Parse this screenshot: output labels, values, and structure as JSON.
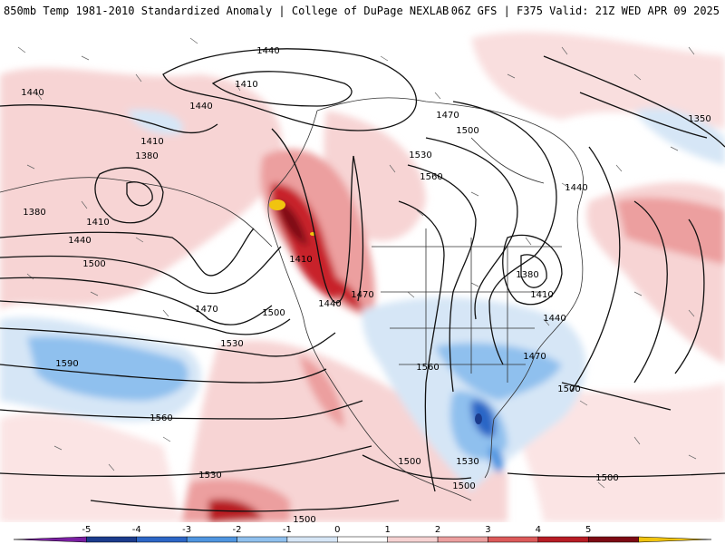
{
  "header": {
    "left_title": "850mb Temp 1981-2010 Standardized Anomaly | College of DuPage NEXLAB",
    "right_title": "06Z GFS | F375 Valid: 21Z WED APR 09 2025"
  },
  "contour_labels": [
    "1440",
    "1410",
    "1440",
    "1440",
    "1410",
    "1380",
    "1380",
    "1410",
    "1440",
    "1500",
    "1470",
    "1530",
    "1590",
    "1560",
    "1530",
    "1500",
    "1410",
    "1440",
    "1470",
    "1500",
    "1470",
    "1500",
    "1530",
    "1560",
    "1440",
    "1380",
    "1410",
    "1440",
    "1470",
    "1500",
    "1560",
    "1500",
    "1530",
    "1500",
    "1500",
    "1350"
  ],
  "colorbar": {
    "ticks": [
      "-5",
      "-4",
      "-3",
      "-2",
      "-1",
      "0",
      "1",
      "2",
      "3",
      "4",
      "5"
    ],
    "colors": [
      "#7a1fa2",
      "#1b3b8c",
      "#2c66c6",
      "#4f95e0",
      "#8fc0ee",
      "#d6e6f6",
      "#ffffff",
      "#f6d2d2",
      "#ec9f9f",
      "#dc5a5a",
      "#b71c24",
      "#7d0a14",
      "#f1c40f"
    ]
  }
}
